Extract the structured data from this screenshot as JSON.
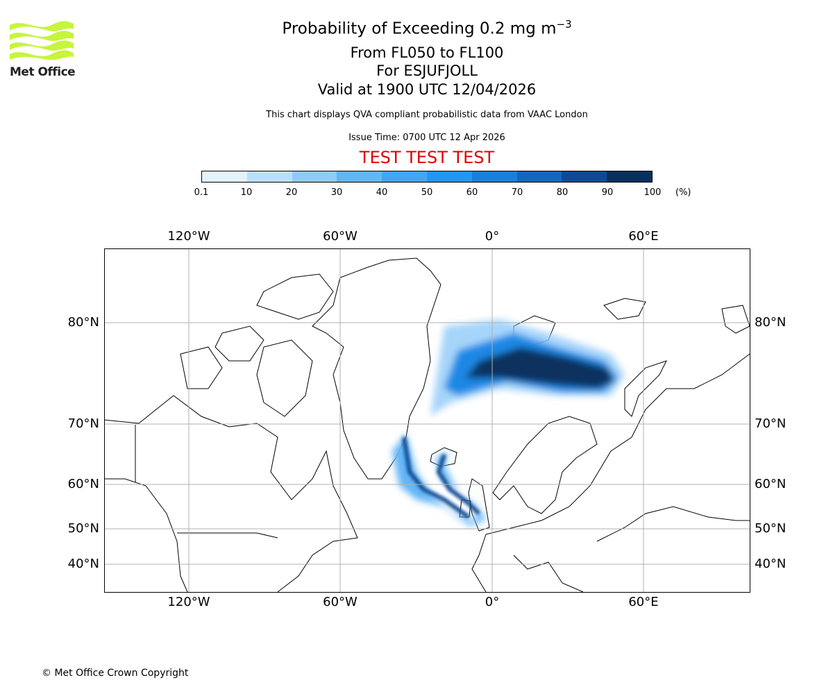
{
  "logo": {
    "text": "Met Office"
  },
  "header": {
    "title": "Probability of Exceeding 0.2 mg m",
    "title_exp": "−3",
    "levels": "From FL050 to FL100",
    "volcano": "For ESJUFJOLL",
    "valid": "Valid at 1900 UTC 12/04/2026",
    "note": "This chart displays QVA compliant probabilistic data from VAAC London",
    "issue": "Issue Time: 0700 UTC 12 Apr 2026",
    "test": "TEST TEST TEST"
  },
  "chart_data": {
    "type": "heatmap",
    "title": "Probability of Exceeding 0.2 mg m-3",
    "colorbar": {
      "ticks": [
        "0.1",
        "10",
        "20",
        "30",
        "40",
        "50",
        "60",
        "70",
        "80",
        "90",
        "100"
      ],
      "unit": "(%)",
      "colors": [
        "#e3f2fd",
        "#bbdefb",
        "#90caf9",
        "#64b5f6",
        "#42a5f5",
        "#2196f3",
        "#1a7fdc",
        "#1565c0",
        "#0d4a91",
        "#08305e"
      ]
    },
    "lon_ticks": [
      "120°W",
      "60°W",
      "0°",
      "60°E"
    ],
    "lat_ticks": [
      "80°N",
      "70°N",
      "60°N",
      "50°N",
      "40°N"
    ],
    "grid": true
  },
  "footer": {
    "copyright": "© Met Office Crown Copyright"
  }
}
